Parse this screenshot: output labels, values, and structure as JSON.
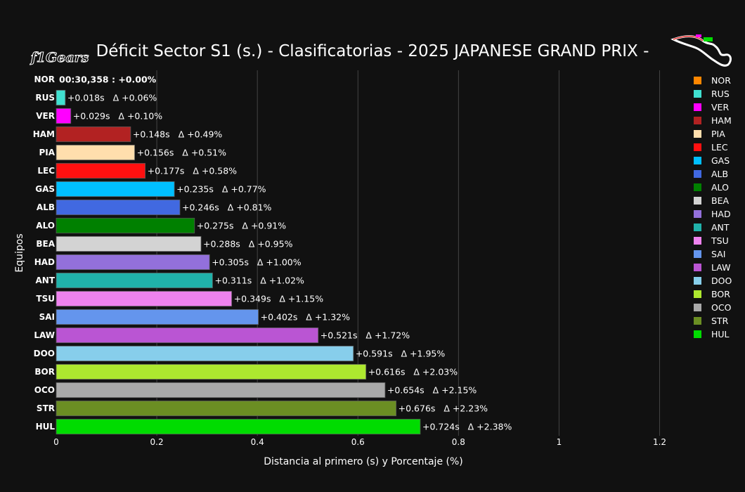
{
  "chart_data": {
    "type": "bar",
    "orientation": "horizontal",
    "title": "Déficit Sector S1 (s.) - Clasificatorias - 2025 JAPANESE GRAND PRIX -",
    "xlabel": "Distancia al primero (s) y Porcentaje (%)",
    "ylabel": "Equipos",
    "xlim": [
      0,
      1.23
    ],
    "xticks": [
      "0",
      "0.2",
      "0.4",
      "0.6",
      "0.8",
      "1",
      "1.2"
    ],
    "grid": true,
    "legend_position": "right",
    "categories": [
      "NOR",
      "RUS",
      "VER",
      "HAM",
      "PIA",
      "LEC",
      "GAS",
      "ALB",
      "ALO",
      "BEA",
      "HAD",
      "ANT",
      "TSU",
      "SAI",
      "LAW",
      "DOO",
      "BOR",
      "OCO",
      "STR",
      "HUL"
    ],
    "values": [
      0,
      0.018,
      0.029,
      0.148,
      0.156,
      0.177,
      0.235,
      0.246,
      0.275,
      0.288,
      0.305,
      0.311,
      0.349,
      0.402,
      0.521,
      0.591,
      0.616,
      0.654,
      0.676,
      0.724
    ],
    "labels": [
      "00:30,358 : +0.00%",
      "+0.018s   Δ +0.06%",
      "+0.029s   Δ +0.10%",
      "+0.148s   Δ +0.49%",
      "+0.156s   Δ +0.51%",
      "+0.177s   Δ +0.58%",
      "+0.235s   Δ +0.77%",
      "+0.246s   Δ +0.81%",
      "+0.275s   Δ +0.91%",
      "+0.288s   Δ +0.95%",
      "+0.305s   Δ +1.00%",
      "+0.311s   Δ +1.02%",
      "+0.349s   Δ +1.15%",
      "+0.402s   Δ +1.32%",
      "+0.521s   Δ +1.72%",
      "+0.591s   Δ +1.95%",
      "+0.616s   Δ +2.03%",
      "+0.654s   Δ +2.15%",
      "+0.676s   Δ +2.23%",
      "+0.724s   Δ +2.38%"
    ],
    "colors": [
      "#FF8700",
      "#40E0D0",
      "#FF00FF",
      "#B22222",
      "#FFDEAD",
      "#FF1010",
      "#00BFFF",
      "#4169E1",
      "#008000",
      "#D3D3D3",
      "#9370DB",
      "#20B2AA",
      "#EE82EE",
      "#6495ED",
      "#BA55D3",
      "#87CEEB",
      "#ADE82F",
      "#A9A9A9",
      "#6B8E23",
      "#00DC00"
    ]
  },
  "logo": {
    "text": "f1Gears"
  }
}
